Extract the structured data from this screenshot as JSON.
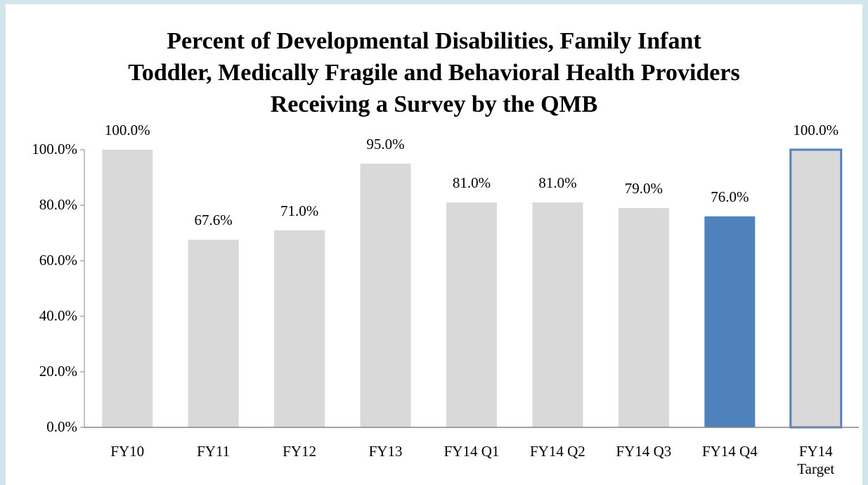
{
  "chart_data": {
    "type": "bar",
    "title": "Percent of Developmental Disabilities, Family Infant\nToddler, Medically Fragile and Behavioral Health Providers\nReceiving a Survey by the QMB",
    "categories": [
      "FY10",
      "FY11",
      "FY12",
      "FY13",
      "FY14 Q1",
      "FY14 Q2",
      "FY14 Q3",
      "FY14 Q4",
      "FY14\nTarget"
    ],
    "values": [
      100,
      67.6,
      71,
      95,
      81,
      81,
      79,
      76,
      100
    ],
    "value_labels": [
      "100.0%",
      "67.6%",
      "71.0%",
      "95.0%",
      "81.0%",
      "81.0%",
      "79.0%",
      "76.0%",
      "100.0%"
    ],
    "colors": [
      "#d9d9d9",
      "#d9d9d9",
      "#d9d9d9",
      "#d9d9d9",
      "#d9d9d9",
      "#d9d9d9",
      "#d9d9d9",
      "#4f81bd",
      "#d9d9d9"
    ],
    "edge_colors": [
      null,
      null,
      null,
      null,
      null,
      null,
      null,
      null,
      "#4f81bd"
    ],
    "ylim": [
      0,
      100
    ],
    "yticks": [
      {
        "value": 0,
        "label": "0.0%"
      },
      {
        "value": 20,
        "label": "20.0%"
      },
      {
        "value": 40,
        "label": "40.0%"
      },
      {
        "value": 60,
        "label": "60.0%"
      },
      {
        "value": 80,
        "label": "80.0%"
      },
      {
        "value": 100,
        "label": "100.0%"
      }
    ]
  }
}
